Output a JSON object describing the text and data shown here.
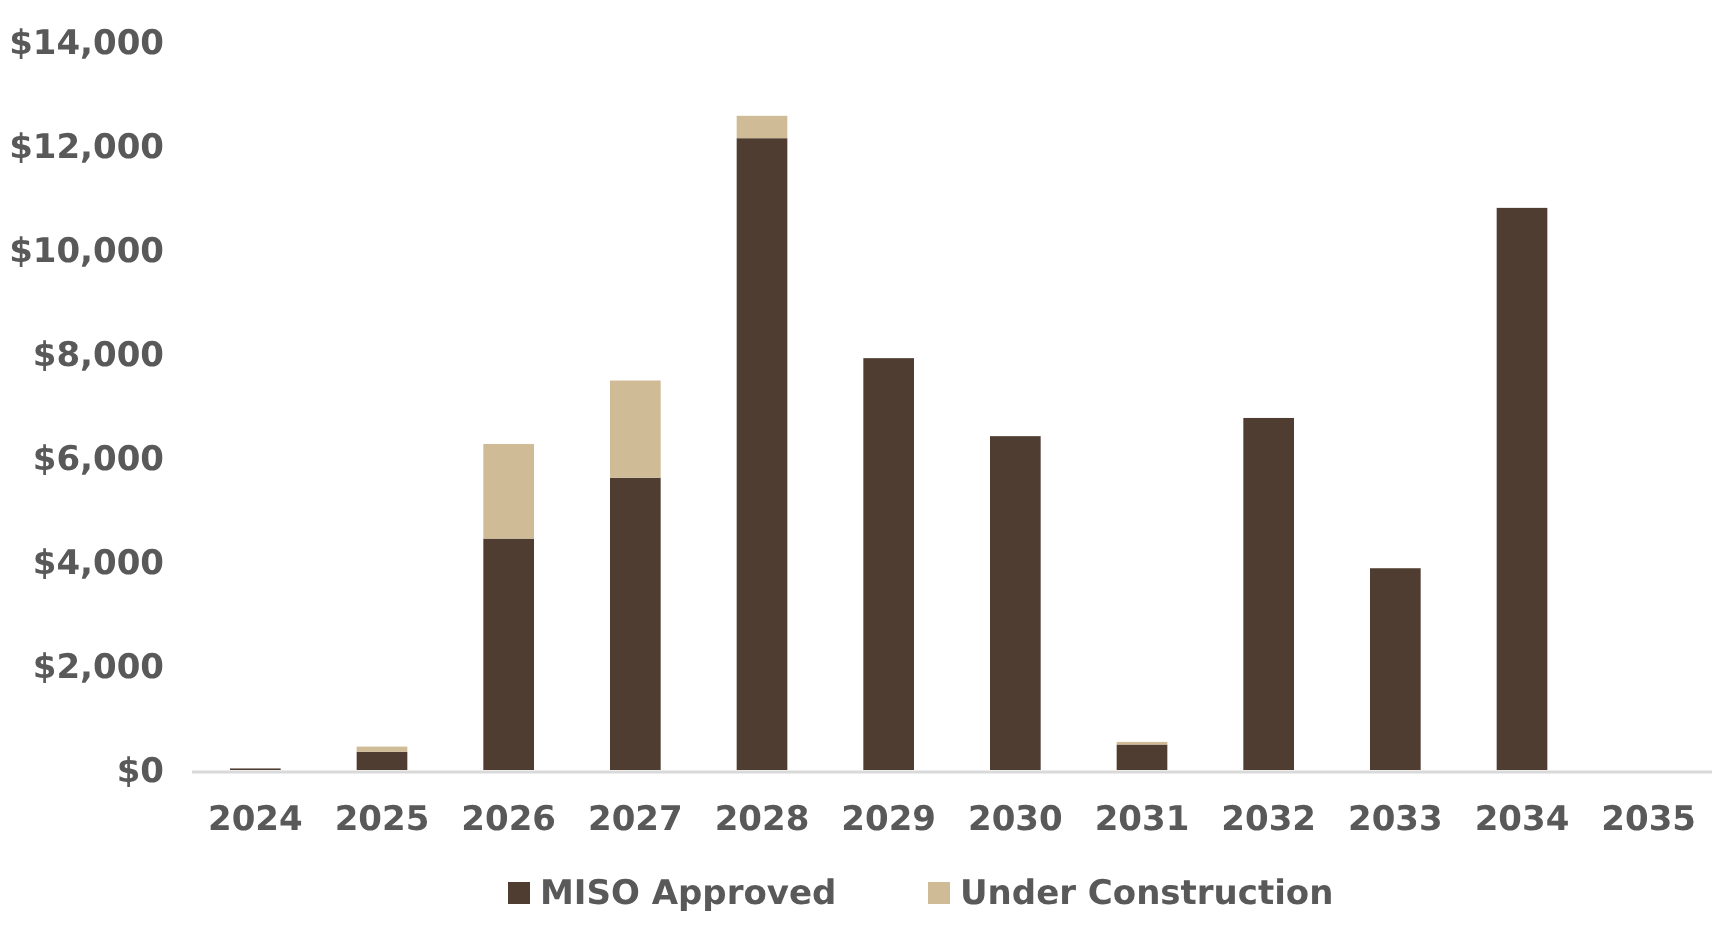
{
  "chart_data": {
    "type": "bar",
    "stacked": true,
    "categories": [
      "2024",
      "2025",
      "2026",
      "2027",
      "2028",
      "2029",
      "2030",
      "2031",
      "2032",
      "2033",
      "2034",
      "2035"
    ],
    "series": [
      {
        "name": "MISO Approved",
        "color": "#4e3d30",
        "values": [
          30,
          350,
          4450,
          5620,
          12150,
          7920,
          6420,
          490,
          6770,
          3880,
          10810,
          0
        ]
      },
      {
        "name": "Under Construction",
        "color": "#cfbb96",
        "values": [
          0,
          100,
          1820,
          1870,
          430,
          0,
          0,
          50,
          0,
          0,
          0,
          0
        ]
      }
    ],
    "ylim": [
      0,
      14000
    ],
    "yticks": [
      {
        "value": 0,
        "label": "$0"
      },
      {
        "value": 2000,
        "label": "$2,000"
      },
      {
        "value": 4000,
        "label": "$4,000"
      },
      {
        "value": 6000,
        "label": "$6,000"
      },
      {
        "value": 8000,
        "label": "$8,000"
      },
      {
        "value": 10000,
        "label": "$10,000"
      },
      {
        "value": 12000,
        "label": "$12,000"
      },
      {
        "value": 14000,
        "label": "$14,000"
      }
    ],
    "grid": false,
    "legend": "bottom"
  }
}
